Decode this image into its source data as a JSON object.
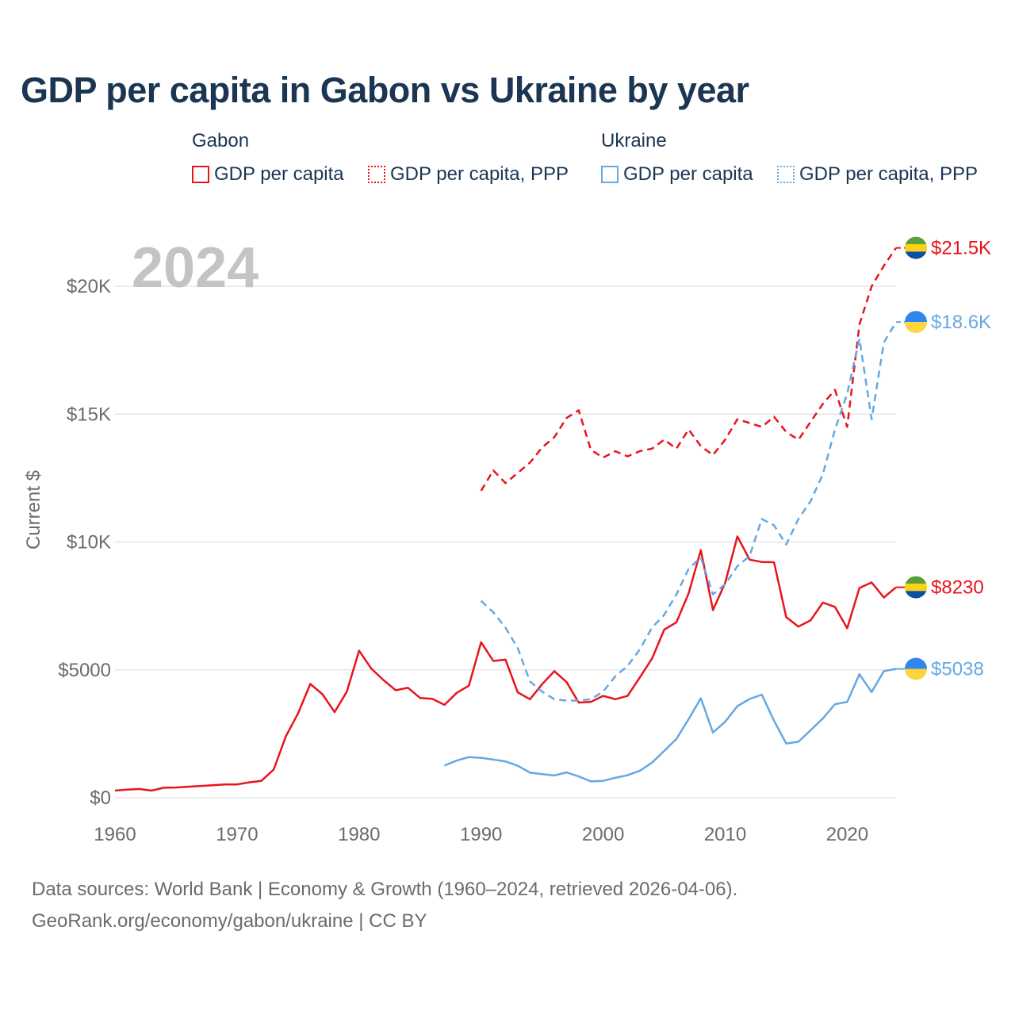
{
  "title": "GDP per capita in Gabon vs Ukraine by year",
  "legend": {
    "gabon": {
      "title": "Gabon",
      "gdp": "GDP per capita",
      "ppp": "GDP per capita, PPP"
    },
    "ukraine": {
      "title": "Ukraine",
      "gdp": "GDP per capita",
      "ppp": "GDP per capita, PPP"
    }
  },
  "colors": {
    "gabon": "#e8141c",
    "ukraine": "#64a8e4",
    "title": "#1b3553",
    "grid": "#e6e6e6",
    "axis_text": "#6b6b6b",
    "year_label": "#c4c4c4"
  },
  "footer": {
    "line1": "Data sources: World Bank | Economy & Growth (1960–2024, retrieved 2026-04-06).",
    "line2": "GeoRank.org/economy/gabon/ukraine | CC BY"
  },
  "chart_data": {
    "type": "line",
    "year_label": "2024",
    "ylabel": "Current $",
    "xlim": [
      1960,
      2024
    ],
    "ylim": [
      0,
      22000
    ],
    "x_ticks": [
      1960,
      1970,
      1980,
      1990,
      2000,
      2010,
      2020
    ],
    "x_tick_labels": [
      "1960",
      "1970",
      "1980",
      "1990",
      "2000",
      "2010",
      "2020"
    ],
    "y_ticks": [
      0,
      5000,
      10000,
      15000,
      20000
    ],
    "y_tick_labels": [
      "$0",
      "$5000",
      "$10K",
      "$15K",
      "$20K"
    ],
    "grid": true,
    "series": [
      {
        "name": "Gabon GDP per capita",
        "country": "gabon",
        "dashed": false,
        "end_label": "$8230",
        "x": [
          1960,
          1961,
          1962,
          1963,
          1964,
          1965,
          1966,
          1967,
          1968,
          1969,
          1970,
          1971,
          1972,
          1973,
          1974,
          1975,
          1976,
          1977,
          1978,
          1979,
          1980,
          1981,
          1982,
          1983,
          1984,
          1985,
          1986,
          1987,
          1988,
          1989,
          1990,
          1991,
          1992,
          1993,
          1994,
          1995,
          1996,
          1997,
          1998,
          1999,
          2000,
          2001,
          2002,
          2003,
          2004,
          2005,
          2006,
          2007,
          2008,
          2009,
          2010,
          2011,
          2012,
          2013,
          2014,
          2015,
          2016,
          2017,
          2018,
          2019,
          2020,
          2021,
          2022,
          2023,
          2024
        ],
        "values": [
          280,
          320,
          340,
          280,
          390,
          400,
          430,
          460,
          490,
          520,
          520,
          600,
          660,
          1100,
          2400,
          3300,
          4450,
          4050,
          3350,
          4150,
          5750,
          5050,
          4600,
          4200,
          4300,
          3900,
          3870,
          3630,
          4100,
          4380,
          6080,
          5350,
          5400,
          4120,
          3850,
          4440,
          4950,
          4520,
          3720,
          3750,
          3980,
          3850,
          3980,
          4700,
          5440,
          6570,
          6860,
          7990,
          9680,
          7340,
          8400,
          10220,
          9310,
          9220,
          9210,
          7060,
          6690,
          6940,
          7630,
          7460,
          6630,
          8200,
          8420,
          7830,
          8230
        ]
      },
      {
        "name": "Gabon GDP per capita, PPP",
        "country": "gabon",
        "dashed": true,
        "end_label": "$21.5K",
        "x": [
          1990,
          1991,
          1992,
          1993,
          1994,
          1995,
          1996,
          1997,
          1998,
          1999,
          2000,
          2001,
          2002,
          2003,
          2004,
          2005,
          2006,
          2007,
          2008,
          2009,
          2010,
          2011,
          2012,
          2013,
          2014,
          2015,
          2016,
          2017,
          2018,
          2019,
          2020,
          2021,
          2022,
          2023,
          2024
        ],
        "values": [
          12000,
          12800,
          12300,
          12700,
          13100,
          13700,
          14100,
          14850,
          15150,
          13600,
          13300,
          13550,
          13350,
          13550,
          13650,
          14000,
          13650,
          14400,
          13750,
          13400,
          14000,
          14800,
          14650,
          14500,
          14900,
          14300,
          14000,
          14700,
          15400,
          15950,
          14500,
          18500,
          20000,
          20800,
          21500
        ]
      },
      {
        "name": "Ukraine GDP per capita",
        "country": "ukraine",
        "dashed": false,
        "end_label": "$5038",
        "x": [
          1987,
          1988,
          1989,
          1990,
          1991,
          1992,
          1993,
          1994,
          1995,
          1996,
          1997,
          1998,
          1999,
          2000,
          2001,
          2002,
          2003,
          2004,
          2005,
          2006,
          2007,
          2008,
          2009,
          2010,
          2011,
          2012,
          2013,
          2014,
          2015,
          2016,
          2017,
          2018,
          2019,
          2020,
          2021,
          2022,
          2023,
          2024
        ],
        "values": [
          1260,
          1450,
          1590,
          1560,
          1490,
          1420,
          1250,
          980,
          920,
          870,
          990,
          830,
          640,
          660,
          780,
          880,
          1050,
          1370,
          1830,
          2300,
          3070,
          3890,
          2550,
          2970,
          3580,
          3860,
          4030,
          3010,
          2120,
          2190,
          2640,
          3100,
          3660,
          3750,
          4830,
          4130,
          4950,
          5038
        ]
      },
      {
        "name": "Ukraine GDP per capita, PPP",
        "country": "ukraine",
        "dashed": true,
        "end_label": "$18.6K",
        "x": [
          1990,
          1991,
          1992,
          1993,
          1994,
          1995,
          1996,
          1997,
          1998,
          1999,
          2000,
          2001,
          2002,
          2003,
          2004,
          2005,
          2006,
          2007,
          2008,
          2009,
          2010,
          2011,
          2012,
          2013,
          2014,
          2015,
          2016,
          2017,
          2018,
          2019,
          2020,
          2021,
          2022,
          2023,
          2024
        ],
        "values": [
          7700,
          7250,
          6650,
          5850,
          4550,
          4150,
          3850,
          3800,
          3800,
          3850,
          4150,
          4750,
          5150,
          5800,
          6650,
          7150,
          7950,
          8950,
          9400,
          7950,
          8350,
          9050,
          9450,
          10900,
          10650,
          9900,
          10900,
          11600,
          12650,
          14400,
          15800,
          17950,
          14800,
          17800,
          18600
        ]
      }
    ]
  }
}
